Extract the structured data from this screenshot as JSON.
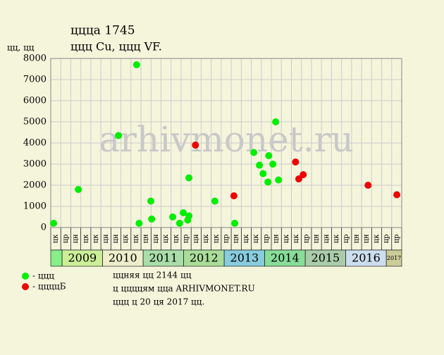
{
  "chart_data": {
    "type": "scatter",
    "title": "ццца 1745",
    "subtitle": "ццц Cu, ццц VF.",
    "y_label": "цц, цц",
    "watermark": "arhivmonet.ru",
    "series": [
      {
        "name": "- ццц",
        "color": "#00ee00",
        "x": [
          2008.79,
          2009.4,
          2010.39,
          2010.84,
          2010.9,
          2011.19,
          2011.21,
          2011.73,
          2011.9,
          2011.99,
          2012.1,
          2012.13,
          2012.13,
          2012.77,
          2013.26,
          2013.73,
          2013.87,
          2013.96,
          2014.08,
          2014.1,
          2014.2,
          2014.27,
          2014.34
        ],
        "values": [
          200,
          1800,
          4350,
          7700,
          200,
          1250,
          400,
          500,
          200,
          700,
          350,
          550,
          2350,
          1250,
          200,
          3550,
          2950,
          2550,
          2150,
          3400,
          3000,
          5000,
          2250
        ]
      },
      {
        "name": "- ццццБ",
        "color": "#ee0000",
        "x": [
          2012.29,
          2013.24,
          2014.76,
          2014.84,
          2014.95,
          2016.55,
          2017.26
        ],
        "values": [
          3900,
          1500,
          3100,
          2300,
          2500,
          2000,
          1550
        ]
      }
    ],
    "xlim": [
      2008.72,
      2017.38
    ],
    "ylim": [
      0,
      8000
    ],
    "yticks": [
      0,
      1000,
      2000,
      3000,
      4000,
      5000,
      6000,
      7000,
      8000
    ],
    "grid": true,
    "month_labels": [
      "цк",
      "цр",
      "цн",
      "цк",
      "цк",
      "цн",
      "цн",
      "цк",
      "цк",
      "цн",
      "цн",
      "цк",
      "цк",
      "цр",
      "цн",
      "цк",
      "цк",
      "цр",
      "цн",
      "цк",
      "цк",
      "цр",
      "цн",
      "цк",
      "цк",
      "цр",
      "цн",
      "цн",
      "цк",
      "цр",
      "цн",
      "цн",
      "цк",
      "цр",
      "цр"
    ],
    "year_labels": [
      null,
      "2009",
      "2010",
      "2011",
      "2012",
      "2013",
      "2014",
      "2015",
      "2016",
      "2017"
    ],
    "year_edges": [
      2008.72,
      2009,
      2010,
      2011,
      2012,
      2013,
      2014,
      2015,
      2016,
      2017,
      2017.38
    ],
    "year_colors": [
      "#88ee88",
      "#ccee99",
      "#eeeecc",
      "#aaddaa",
      "#aadd99",
      "#88ccdd",
      "#88dd99",
      "#aaccaa",
      "#ccddee",
      "#cccc99"
    ],
    "notes": [
      "ццняя цц 2144 цц",
      "ц ццццям цца ARHIVMONET.RU",
      "ццц ц 20 ця 2017 цц."
    ]
  }
}
